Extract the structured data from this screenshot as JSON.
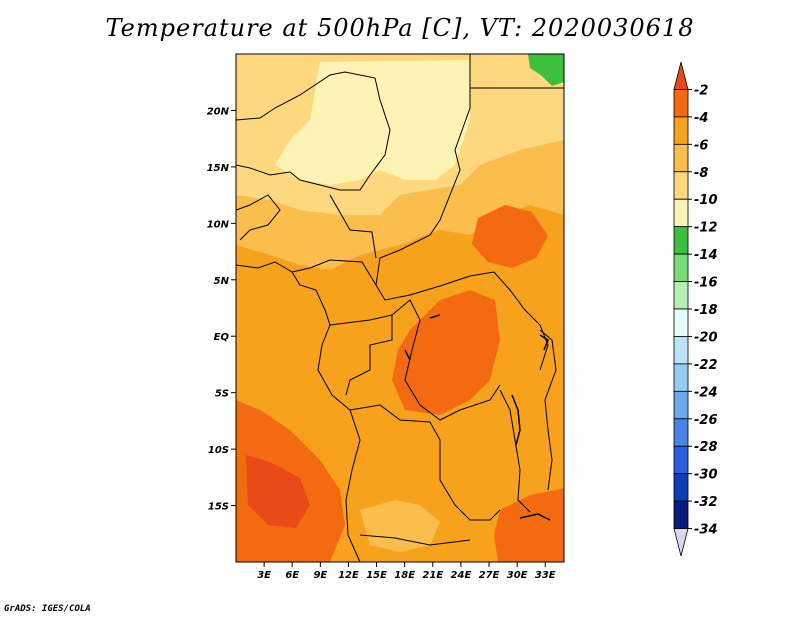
{
  "title": "Temperature at 500hPa [C], VT: 2020030618",
  "credit": "GrADS: IGES/COLA",
  "map": {
    "lat_labels": [
      "20N",
      "15N",
      "10N",
      "5N",
      "EQ",
      "5S",
      "10S",
      "15S"
    ],
    "lat_values": [
      20,
      15,
      10,
      5,
      0,
      -5,
      -10,
      -15
    ],
    "lon_labels": [
      "3E",
      "6E",
      "9E",
      "12E",
      "15E",
      "18E",
      "21E",
      "24E",
      "27E",
      "30E",
      "33E"
    ],
    "lon_values": [
      3,
      6,
      9,
      12,
      15,
      18,
      21,
      24,
      27,
      30,
      33
    ],
    "lon_range": [
      0,
      35
    ],
    "lat_range": [
      -20,
      25
    ]
  },
  "colorbar": {
    "labels": [
      "-2",
      "-4",
      "-6",
      "-8",
      "-10",
      "-12",
      "-14",
      "-16",
      "-18",
      "-20",
      "-22",
      "-24",
      "-26",
      "-28",
      "-30",
      "-32",
      "-34"
    ],
    "colors": [
      "#e84a18",
      "#f36a10",
      "#f7a21c",
      "#fbbd4c",
      "#fdd87e",
      "#fdf3b4",
      "#3cbf3c",
      "#78dc78",
      "#b4f0b4",
      "#e6fbfb",
      "#bde2f6",
      "#93cdf2",
      "#6aa8ec",
      "#4a84e6",
      "#2a5ede",
      "#0e3eb4",
      "#0a1a78",
      "#d8d6f2"
    ]
  }
}
